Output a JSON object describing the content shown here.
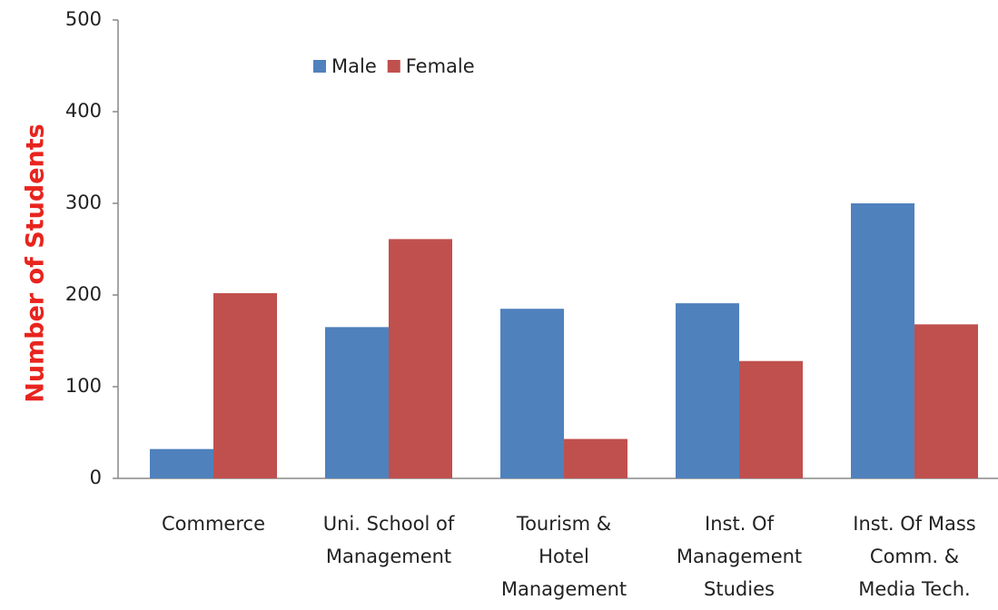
{
  "chart_data": {
    "type": "bar",
    "ylabel": "Number of Students",
    "categories": [
      "Commerce",
      "Uni. School of\nManagement",
      "Tourism &\nHotel\nManagement",
      "Inst. Of\nManagement\nStudies",
      "Inst. Of Mass\nComm. &\nMedia Tech."
    ],
    "series": [
      {
        "name": "Male",
        "color": "#4f81bd",
        "values": [
          32,
          165,
          185,
          191,
          300
        ]
      },
      {
        "name": "Female",
        "color": "#c0504d",
        "values": [
          202,
          261,
          43,
          128,
          168
        ]
      }
    ],
    "ylim": [
      0,
      500
    ],
    "yticks": [
      0,
      100,
      200,
      300,
      400,
      500
    ],
    "grid": false,
    "legend": "top"
  }
}
